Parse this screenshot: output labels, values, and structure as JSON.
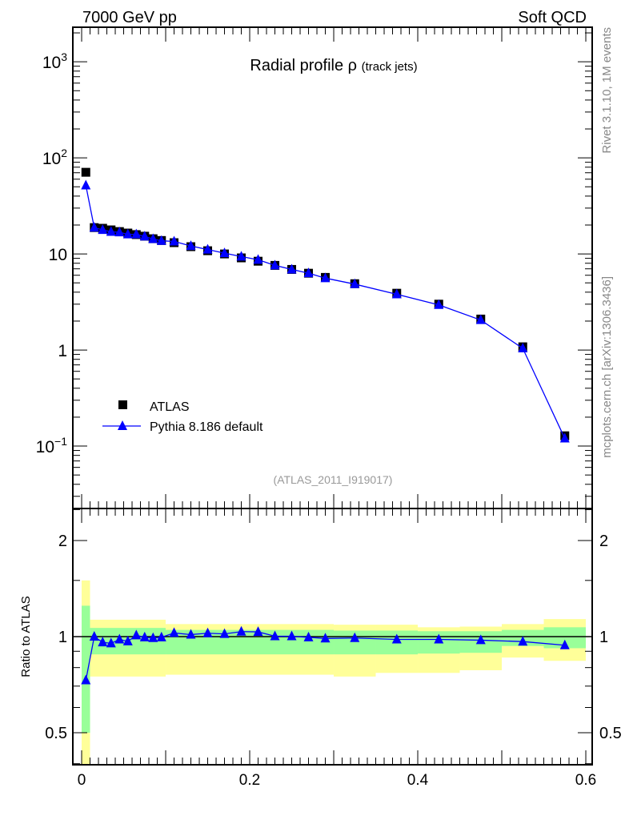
{
  "header": {
    "left": "7000 GeV pp",
    "right": "Soft QCD"
  },
  "side_labels": {
    "top": "Rivet 3.1.10,  1M events",
    "bottom": "mcplots.cern.ch [arXiv:1306.3436]"
  },
  "colors": {
    "data": "#000000",
    "mc": "#0000ff",
    "band_inner": "#99ff99",
    "band_outer": "#ffff99"
  },
  "chart_data": [
    {
      "type": "scatter",
      "title": "Radial profile",
      "title_symbol": "ρ",
      "title_suffix": "(track jets)",
      "analysis_id": "(ATLAS_2011_I919017)",
      "yscale": "log",
      "ylim": [
        0.0224,
        2290
      ],
      "xlim": [
        -0.0105,
        0.6076
      ],
      "ytick_labels": [
        {
          "base": "10",
          "exp": "3",
          "v": 1000
        },
        {
          "base": "10",
          "exp": "2",
          "v": 100
        },
        {
          "base": "10",
          "exp": "",
          "v": 10
        },
        {
          "base": "1",
          "exp": "",
          "v": 1
        },
        {
          "base": "10",
          "exp": "−1",
          "v": 0.1
        }
      ],
      "legend": {
        "placement": "bottom-left",
        "entries": [
          "ATLAS",
          "Pythia 8.186 default"
        ]
      },
      "x": [
        0.005,
        0.015,
        0.025,
        0.035,
        0.045,
        0.055,
        0.065,
        0.075,
        0.085,
        0.095,
        0.11,
        0.13,
        0.15,
        0.17,
        0.19,
        0.21,
        0.23,
        0.25,
        0.27,
        0.29,
        0.325,
        0.375,
        0.425,
        0.475,
        0.525,
        0.575
      ],
      "series": [
        {
          "name": "ATLAS",
          "values": [
            70.8,
            18.8,
            18.5,
            17.8,
            17.1,
            16.5,
            15.9,
            15.3,
            14.4,
            13.8,
            13.1,
            11.9,
            10.8,
            10.0,
            9.1,
            8.4,
            7.6,
            6.9,
            6.3,
            5.7,
            4.9,
            3.9,
            3.0,
            2.1,
            1.08,
            0.128
          ]
        },
        {
          "name": "Pythia 8.186 default",
          "values": [
            51.7,
            18.8,
            17.8,
            17.0,
            16.8,
            16.0,
            16.0,
            15.2,
            14.3,
            13.7,
            13.5,
            12.1,
            11.1,
            10.2,
            9.4,
            8.7,
            7.6,
            6.9,
            6.3,
            5.6,
            4.85,
            3.8,
            2.95,
            2.05,
            1.04,
            0.12
          ]
        }
      ]
    },
    {
      "type": "scatter",
      "ylabel": "Ratio to ATLAS",
      "yscale": "log",
      "ylim": [
        0.397,
        2.52
      ],
      "xlim": [
        -0.0105,
        0.6076
      ],
      "ytick_labels": [
        {
          "label": "2",
          "v": 2
        },
        {
          "label": "1",
          "v": 1
        },
        {
          "label": "0.5",
          "v": 0.5
        }
      ],
      "xtick_labels": [
        {
          "label": "0",
          "v": 0
        },
        {
          "label": "0.2",
          "v": 0.2
        },
        {
          "label": "0.4",
          "v": 0.4
        },
        {
          "label": "0.6",
          "v": 0.6
        }
      ],
      "x": [
        0.005,
        0.015,
        0.025,
        0.035,
        0.045,
        0.055,
        0.065,
        0.075,
        0.085,
        0.095,
        0.11,
        0.13,
        0.15,
        0.17,
        0.19,
        0.21,
        0.23,
        0.25,
        0.27,
        0.29,
        0.325,
        0.375,
        0.425,
        0.475,
        0.525,
        0.575
      ],
      "ratio": [
        0.73,
        1.0,
        0.96,
        0.953,
        0.98,
        0.967,
        1.01,
        0.995,
        0.99,
        0.995,
        1.027,
        1.015,
        1.025,
        1.02,
        1.037,
        1.035,
        1.003,
        1.003,
        0.995,
        0.987,
        0.99,
        0.98,
        0.98,
        0.975,
        0.965,
        0.94
      ],
      "bands": [
        {
          "x0": 0.0,
          "x1": 0.01,
          "g": [
            0.5,
            1.25
          ],
          "y": [
            0.39,
            1.5
          ]
        },
        {
          "x0": 0.01,
          "x1": 0.1,
          "g": [
            0.88,
            1.065
          ],
          "y": [
            0.75,
            1.13
          ]
        },
        {
          "x0": 0.1,
          "x1": 0.3,
          "g": [
            0.88,
            1.05
          ],
          "y": [
            0.76,
            1.095
          ]
        },
        {
          "x0": 0.3,
          "x1": 0.35,
          "g": [
            0.88,
            1.045
          ],
          "y": [
            0.75,
            1.09
          ]
        },
        {
          "x0": 0.35,
          "x1": 0.4,
          "g": [
            0.88,
            1.045
          ],
          "y": [
            0.77,
            1.09
          ]
        },
        {
          "x0": 0.4,
          "x1": 0.45,
          "g": [
            0.885,
            1.04
          ],
          "y": [
            0.77,
            1.07
          ]
        },
        {
          "x0": 0.45,
          "x1": 0.5,
          "g": [
            0.89,
            1.04
          ],
          "y": [
            0.785,
            1.075
          ]
        },
        {
          "x0": 0.5,
          "x1": 0.55,
          "g": [
            0.935,
            1.05
          ],
          "y": [
            0.86,
            1.095
          ]
        },
        {
          "x0": 0.55,
          "x1": 0.6,
          "g": [
            0.92,
            1.07
          ],
          "y": [
            0.84,
            1.135
          ]
        }
      ]
    }
  ]
}
